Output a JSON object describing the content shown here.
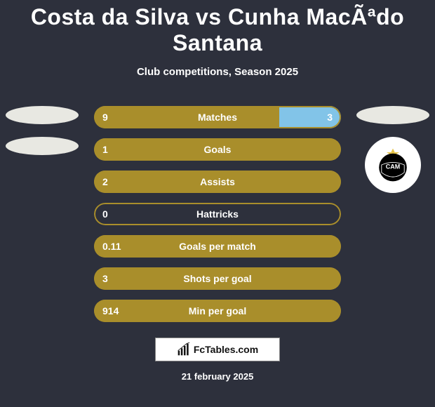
{
  "colors": {
    "background": "#2d303c",
    "left_color": "#a98e2b",
    "right_color": "#82c4e8",
    "ellipse": "#e8e8e2",
    "text": "#ffffff",
    "border": "#a98e2b"
  },
  "title": "Costa da Silva vs Cunha MacÃªdo Santana",
  "subtitle": "Club competitions, Season 2025",
  "date": "21 february 2025",
  "branding": "FcTables.com",
  "bars": [
    {
      "label": "Matches",
      "left": "9",
      "right": "3",
      "left_pct": 75,
      "right_pct": 25
    },
    {
      "label": "Goals",
      "left": "1",
      "right": "",
      "left_pct": 100,
      "right_pct": 0
    },
    {
      "label": "Assists",
      "left": "2",
      "right": "",
      "left_pct": 100,
      "right_pct": 0
    },
    {
      "label": "Hattricks",
      "left": "0",
      "right": "",
      "left_pct": 0,
      "right_pct": 0
    },
    {
      "label": "Goals per match",
      "left": "0.11",
      "right": "",
      "left_pct": 100,
      "right_pct": 0
    },
    {
      "label": "Shots per goal",
      "left": "3",
      "right": "",
      "left_pct": 100,
      "right_pct": 0
    },
    {
      "label": "Min per goal",
      "left": "914",
      "right": "",
      "left_pct": 100,
      "right_pct": 0
    }
  ],
  "right_badge_text": "CAM",
  "typography": {
    "title_fontsize": 32,
    "subtitle_fontsize": 15,
    "bar_label_fontsize": 14,
    "date_fontsize": 13
  }
}
